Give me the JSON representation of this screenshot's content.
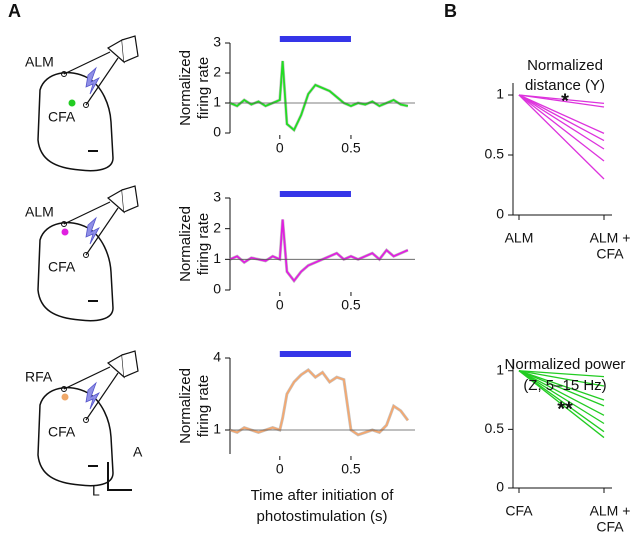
{
  "panel_labels": [
    "A",
    "B"
  ],
  "schematics": [
    {
      "labels": [
        "ALM",
        "CFA"
      ],
      "dot_color": "#22cc22"
    },
    {
      "labels": [
        "ALM",
        "CFA"
      ],
      "dot_color": "#e020e0"
    },
    {
      "labels": [
        "RFA",
        "CFA"
      ],
      "dot_color": "#f0a868"
    }
  ],
  "compass": [
    "A",
    "L"
  ],
  "chart_data": [
    {
      "type": "line",
      "ylabel": [
        "Normalized",
        "firing rate"
      ],
      "xlim": [
        -0.35,
        0.95
      ],
      "ylim": [
        0,
        3
      ],
      "xticks": [
        0,
        0.5
      ],
      "yticks": [
        0,
        1,
        2,
        3
      ],
      "hline": 1,
      "stim": {
        "range": [
          0,
          0.5
        ],
        "color": "#3535e8"
      },
      "x": [
        -0.35,
        -0.3,
        -0.25,
        -0.2,
        -0.15,
        -0.1,
        -0.05,
        0,
        0.02,
        0.05,
        0.1,
        0.15,
        0.2,
        0.25,
        0.3,
        0.35,
        0.4,
        0.45,
        0.5,
        0.55,
        0.6,
        0.65,
        0.7,
        0.75,
        0.8,
        0.85,
        0.9
      ],
      "series": [
        {
          "color": "#22dd22",
          "values": [
            1.0,
            0.9,
            1.1,
            0.95,
            1.05,
            0.9,
            1.0,
            1.1,
            2.4,
            0.3,
            0.1,
            0.6,
            1.3,
            1.6,
            1.5,
            1.4,
            1.2,
            1.0,
            0.9,
            1.0,
            0.95,
            1.05,
            0.9,
            1.0,
            1.1,
            0.95,
            0.9
          ]
        }
      ]
    },
    {
      "type": "line",
      "ylabel": [
        "Normalized",
        "firing rate"
      ],
      "xlim": [
        -0.35,
        0.95
      ],
      "ylim": [
        0,
        3
      ],
      "xticks": [
        0,
        0.5
      ],
      "yticks": [
        0,
        1,
        2,
        3
      ],
      "hline": 1,
      "stim": {
        "range": [
          0,
          0.5
        ],
        "color": "#3535e8"
      },
      "x": [
        -0.35,
        -0.3,
        -0.25,
        -0.2,
        -0.15,
        -0.1,
        -0.05,
        0,
        0.02,
        0.05,
        0.1,
        0.15,
        0.2,
        0.25,
        0.3,
        0.35,
        0.4,
        0.45,
        0.5,
        0.55,
        0.6,
        0.65,
        0.7,
        0.75,
        0.8,
        0.85,
        0.9
      ],
      "series": [
        {
          "color": "#e020e0",
          "values": [
            1.0,
            1.1,
            0.9,
            1.05,
            1.0,
            0.95,
            1.1,
            1.0,
            2.3,
            0.6,
            0.3,
            0.6,
            0.8,
            0.9,
            1.0,
            1.1,
            1.2,
            1.0,
            1.1,
            1.0,
            1.1,
            1.2,
            1.0,
            1.3,
            1.1,
            1.2,
            1.3
          ]
        }
      ]
    },
    {
      "type": "line",
      "ylabel": [
        "Normalized",
        "firing rate"
      ],
      "xlabel": [
        "Time after initiation of",
        "photostimulation (s)"
      ],
      "xlim": [
        -0.35,
        0.95
      ],
      "ylim": [
        0,
        4
      ],
      "xticks": [
        0,
        0.5
      ],
      "yticks": [
        1,
        4
      ],
      "hline": 1,
      "stim": {
        "range": [
          0,
          0.5
        ],
        "color": "#3535e8"
      },
      "x": [
        -0.35,
        -0.3,
        -0.25,
        -0.2,
        -0.15,
        -0.1,
        -0.05,
        0,
        0.02,
        0.05,
        0.1,
        0.15,
        0.2,
        0.25,
        0.3,
        0.35,
        0.4,
        0.45,
        0.5,
        0.55,
        0.6,
        0.65,
        0.7,
        0.75,
        0.8,
        0.85,
        0.9
      ],
      "series": [
        {
          "color": "#f4a870",
          "values": [
            1.0,
            0.9,
            1.1,
            1.0,
            0.9,
            1.0,
            1.1,
            1.0,
            1.5,
            2.5,
            3.0,
            3.3,
            3.5,
            3.2,
            3.4,
            3.0,
            3.2,
            3.1,
            1.0,
            0.8,
            0.9,
            1.0,
            0.9,
            1.2,
            2.0,
            1.8,
            1.4
          ]
        }
      ]
    },
    {
      "type": "slope",
      "title": [
        "Normalized",
        "distance (Y)"
      ],
      "annotation": "*",
      "categories": [
        [
          "ALM"
        ],
        [
          "ALM +",
          "CFA"
        ]
      ],
      "ylim": [
        0,
        1.1
      ],
      "yticks": [
        0,
        0.5,
        1
      ],
      "color": "#dd33dd",
      "series": [
        {
          "values": [
            1,
            0.93
          ]
        },
        {
          "values": [
            1,
            0.9
          ]
        },
        {
          "values": [
            1,
            0.68
          ]
        },
        {
          "values": [
            1,
            0.62
          ]
        },
        {
          "values": [
            1,
            0.55
          ]
        },
        {
          "values": [
            1,
            0.45
          ]
        },
        {
          "values": [
            1,
            0.3
          ]
        }
      ]
    },
    {
      "type": "slope",
      "title": [
        "Normalized power",
        "(Z, 5–15 Hz)"
      ],
      "annotation": "**",
      "categories": [
        [
          "CFA"
        ],
        [
          "ALM +",
          "CFA"
        ]
      ],
      "ylim": [
        0,
        1.1
      ],
      "yticks": [
        0,
        0.5,
        1
      ],
      "color": "#22cc22",
      "series": [
        {
          "values": [
            1,
            0.95
          ]
        },
        {
          "values": [
            1,
            0.87
          ]
        },
        {
          "values": [
            1,
            0.75
          ]
        },
        {
          "values": [
            1,
            0.7
          ]
        },
        {
          "values": [
            1,
            0.62
          ]
        },
        {
          "values": [
            1,
            0.55
          ]
        },
        {
          "values": [
            1,
            0.48
          ]
        },
        {
          "values": [
            1,
            0.43
          ]
        }
      ]
    }
  ]
}
